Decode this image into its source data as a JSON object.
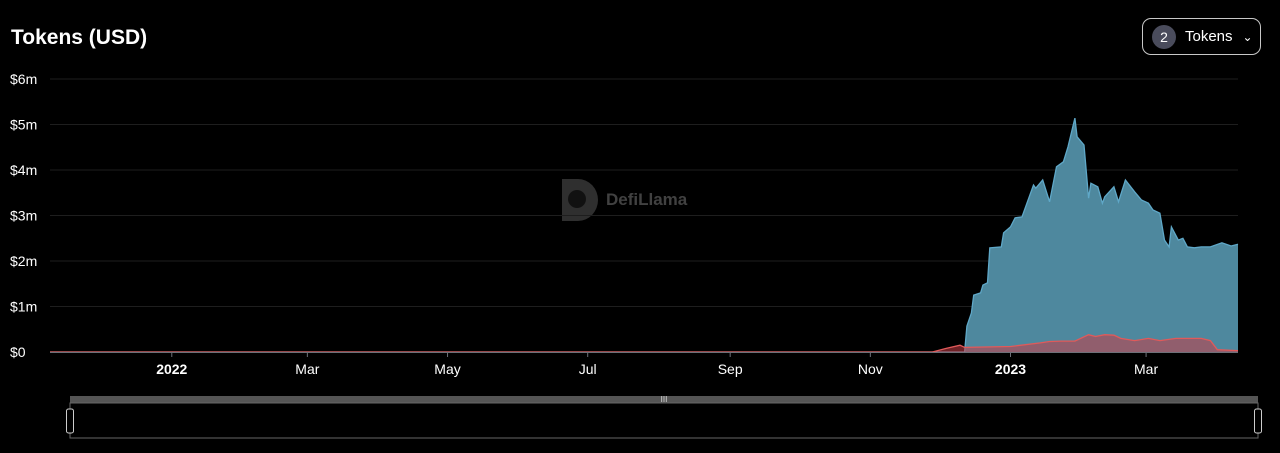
{
  "header": {
    "title": "Tokens (USD)"
  },
  "tokens_dropdown": {
    "count": "2",
    "label": "Tokens",
    "icon": "chevron-down-icon"
  },
  "watermark": "DefiLlama",
  "chart_data": {
    "type": "area",
    "title": "Tokens (USD)",
    "xlim": [
      "2021-11-09",
      "2023-04-10"
    ],
    "ylim": [
      0,
      6000000
    ],
    "y_ticks": [
      "$0",
      "$1m",
      "$2m",
      "$3m",
      "$4m",
      "$5m",
      "$6m"
    ],
    "y_tick_values": [
      0,
      1000000,
      2000000,
      3000000,
      4000000,
      5000000,
      6000000
    ],
    "x_ticks": [
      {
        "label": "2022",
        "date": "2022-01-01",
        "bold": true
      },
      {
        "label": "Mar",
        "date": "2022-03-01",
        "bold": false
      },
      {
        "label": "May",
        "date": "2022-05-01",
        "bold": false
      },
      {
        "label": "Jul",
        "date": "2022-07-01",
        "bold": false
      },
      {
        "label": "Sep",
        "date": "2022-09-01",
        "bold": false
      },
      {
        "label": "Nov",
        "date": "2022-11-01",
        "bold": false
      },
      {
        "label": "2023",
        "date": "2023-01-01",
        "bold": true
      },
      {
        "label": "Mar",
        "date": "2023-03-01",
        "bold": false
      }
    ],
    "grid": true,
    "legend": "none",
    "series": [
      {
        "color": "#5fa8c8",
        "fill": "#4e889e",
        "points": [
          [
            "2021-11-09",
            0
          ],
          [
            "2022-12-11",
            0
          ],
          [
            "2022-12-12",
            0
          ],
          [
            "2022-12-13",
            570000
          ],
          [
            "2022-12-15",
            860000
          ],
          [
            "2022-12-16",
            1250000
          ],
          [
            "2022-12-19",
            1300000
          ],
          [
            "2022-12-20",
            1470000
          ],
          [
            "2022-12-22",
            1520000
          ],
          [
            "2022-12-23",
            2290000
          ],
          [
            "2022-12-28",
            2310000
          ],
          [
            "2022-12-29",
            2620000
          ],
          [
            "2023-01-01",
            2750000
          ],
          [
            "2023-01-03",
            2950000
          ],
          [
            "2023-01-06",
            2970000
          ],
          [
            "2023-01-11",
            3670000
          ],
          [
            "2023-01-12",
            3600000
          ],
          [
            "2023-01-15",
            3780000
          ],
          [
            "2023-01-18",
            3300000
          ],
          [
            "2023-01-21",
            4070000
          ],
          [
            "2023-01-24",
            4180000
          ],
          [
            "2023-01-26",
            4510000
          ],
          [
            "2023-01-29",
            5140000
          ],
          [
            "2023-01-30",
            4730000
          ],
          [
            "2023-02-02",
            4550000
          ],
          [
            "2023-02-04",
            3380000
          ],
          [
            "2023-02-05",
            3710000
          ],
          [
            "2023-02-08",
            3630000
          ],
          [
            "2023-02-10",
            3270000
          ],
          [
            "2023-02-11",
            3410000
          ],
          [
            "2023-02-15",
            3630000
          ],
          [
            "2023-02-17",
            3300000
          ],
          [
            "2023-02-20",
            3780000
          ],
          [
            "2023-02-24",
            3520000
          ],
          [
            "2023-02-27",
            3340000
          ],
          [
            "2023-03-02",
            3270000
          ],
          [
            "2023-03-04",
            3120000
          ],
          [
            "2023-03-07",
            3050000
          ],
          [
            "2023-03-09",
            2460000
          ],
          [
            "2023-03-11",
            2310000
          ],
          [
            "2023-03-12",
            2750000
          ],
          [
            "2023-03-15",
            2460000
          ],
          [
            "2023-03-17",
            2500000
          ],
          [
            "2023-03-19",
            2310000
          ],
          [
            "2023-03-22",
            2290000
          ],
          [
            "2023-03-25",
            2310000
          ],
          [
            "2023-03-29",
            2310000
          ],
          [
            "2023-04-03",
            2400000
          ],
          [
            "2023-04-07",
            2330000
          ],
          [
            "2023-04-10",
            2370000
          ]
        ]
      },
      {
        "color": "#e05a5a",
        "fill": "rgba(200,60,70,0.55)",
        "points": [
          [
            "2021-11-09",
            0
          ],
          [
            "2022-11-28",
            0
          ],
          [
            "2022-12-04",
            80000
          ],
          [
            "2022-12-10",
            150000
          ],
          [
            "2022-12-12",
            100000
          ],
          [
            "2023-01-01",
            120000
          ],
          [
            "2023-01-14",
            200000
          ],
          [
            "2023-01-18",
            230000
          ],
          [
            "2023-01-23",
            240000
          ],
          [
            "2023-01-29",
            240000
          ],
          [
            "2023-02-04",
            380000
          ],
          [
            "2023-02-07",
            340000
          ],
          [
            "2023-02-11",
            380000
          ],
          [
            "2023-02-15",
            370000
          ],
          [
            "2023-02-18",
            300000
          ],
          [
            "2023-02-24",
            250000
          ],
          [
            "2023-03-02",
            300000
          ],
          [
            "2023-03-07",
            250000
          ],
          [
            "2023-03-14",
            300000
          ],
          [
            "2023-03-25",
            300000
          ],
          [
            "2023-03-29",
            250000
          ],
          [
            "2023-04-01",
            50000
          ],
          [
            "2023-04-10",
            30000
          ]
        ]
      }
    ]
  }
}
